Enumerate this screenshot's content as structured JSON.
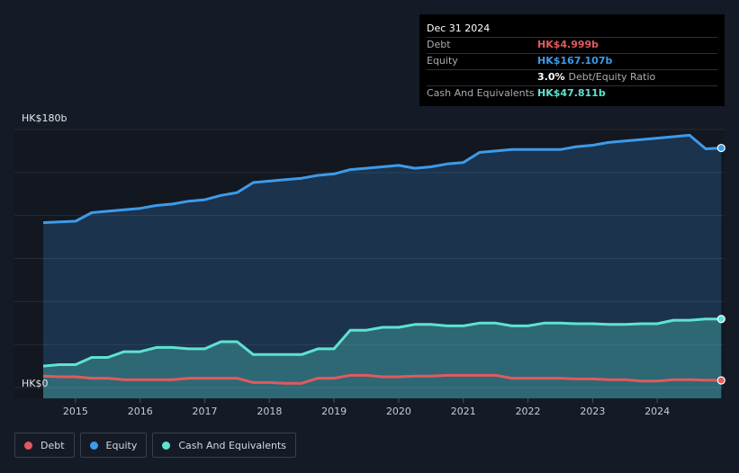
{
  "colors": {
    "debt": "#e05a5f",
    "equity": "#3d9be9",
    "cash": "#5ee3d0",
    "background": "#151b26",
    "plot_background": "#121720"
  },
  "tooltip": {
    "date": "Dec 31 2024",
    "debt_label": "Debt",
    "debt_value": "HK$4.999b",
    "equity_label": "Equity",
    "equity_value": "HK$167.107b",
    "ratio_percent": "3.0%",
    "ratio_label": "Debt/Equity Ratio",
    "cash_label": "Cash And Equivalents",
    "cash_value": "HK$47.811b"
  },
  "legend": [
    {
      "key": "debt",
      "label": "Debt",
      "color": "#e05a5f"
    },
    {
      "key": "equity",
      "label": "Equity",
      "color": "#3d9be9"
    },
    {
      "key": "cash",
      "label": "Cash And Equivalents",
      "color": "#5ee3d0"
    }
  ],
  "chart_data": {
    "type": "line",
    "title": "",
    "xlabel": "",
    "ylabel": "",
    "y_tick_labels": [
      "HK$0",
      "HK$180b"
    ],
    "ylim": [
      0,
      180
    ],
    "xlim": [
      2014.5,
      2025.0
    ],
    "x_ticks": [
      2015,
      2016,
      2017,
      2018,
      2019,
      2020,
      2021,
      2022,
      2023,
      2024
    ],
    "x_tick_labels": [
      "2015",
      "2016",
      "2017",
      "2018",
      "2019",
      "2020",
      "2021",
      "2022",
      "2023",
      "2024"
    ],
    "grid": true,
    "legend_position": "bottom-left",
    "series": [
      {
        "name": "Equity",
        "key": "equity",
        "unit": "HK$b",
        "area": true,
        "x": [
          2014.5,
          2014.75,
          2015.0,
          2015.25,
          2015.5,
          2015.75,
          2016.0,
          2016.25,
          2016.5,
          2016.75,
          2017.0,
          2017.25,
          2017.5,
          2017.75,
          2018.0,
          2018.25,
          2018.5,
          2018.75,
          2019.0,
          2019.25,
          2019.5,
          2019.75,
          2020.0,
          2020.25,
          2020.5,
          2020.75,
          2021.0,
          2021.25,
          2021.5,
          2021.75,
          2022.0,
          2022.25,
          2022.5,
          2022.75,
          2023.0,
          2023.25,
          2023.5,
          2023.75,
          2024.0,
          2024.25,
          2024.5,
          2024.75,
          2024.99
        ],
        "y": [
          115,
          115.5,
          116,
          122,
          123,
          124,
          125,
          127,
          128,
          130,
          131,
          134,
          136,
          143,
          144,
          145,
          146,
          148,
          149,
          152,
          153,
          154,
          155,
          153,
          154,
          156,
          157,
          164,
          165,
          166,
          166,
          166,
          166,
          168,
          169,
          171,
          172,
          173,
          174,
          175,
          176,
          166.5,
          167.107
        ]
      },
      {
        "name": "Cash And Equivalents",
        "key": "cash",
        "unit": "HK$b",
        "area": true,
        "x": [
          2014.5,
          2014.75,
          2015.0,
          2015.25,
          2015.5,
          2015.75,
          2016.0,
          2016.25,
          2016.5,
          2016.75,
          2017.0,
          2017.25,
          2017.5,
          2017.75,
          2018.0,
          2018.25,
          2018.5,
          2018.75,
          2019.0,
          2019.25,
          2019.5,
          2019.75,
          2020.0,
          2020.25,
          2020.5,
          2020.75,
          2021.0,
          2021.25,
          2021.5,
          2021.75,
          2022.0,
          2022.25,
          2022.5,
          2022.75,
          2023.0,
          2023.25,
          2023.5,
          2023.75,
          2024.0,
          2024.25,
          2024.5,
          2024.75,
          2024.99
        ],
        "y": [
          15,
          16,
          16,
          21,
          21,
          25,
          25,
          28,
          28,
          27,
          27,
          32,
          32,
          23,
          23,
          23,
          23,
          27,
          27,
          40,
          40,
          42,
          42,
          44,
          44,
          43,
          43,
          45,
          45,
          43,
          43,
          45,
          45,
          44.5,
          44.5,
          44,
          44,
          44.5,
          44.5,
          47,
          47,
          47.8,
          47.811
        ]
      },
      {
        "name": "Debt",
        "key": "debt",
        "unit": "HK$b",
        "area": false,
        "x": [
          2014.5,
          2014.75,
          2015.0,
          2015.25,
          2015.5,
          2015.75,
          2016.0,
          2016.25,
          2016.5,
          2016.75,
          2017.0,
          2017.25,
          2017.5,
          2017.75,
          2018.0,
          2018.25,
          2018.5,
          2018.75,
          2019.0,
          2019.25,
          2019.5,
          2019.75,
          2020.0,
          2020.25,
          2020.5,
          2020.75,
          2021.0,
          2021.25,
          2021.5,
          2021.75,
          2022.0,
          2022.25,
          2022.5,
          2022.75,
          2023.0,
          2023.25,
          2023.5,
          2023.75,
          2024.0,
          2024.25,
          2024.5,
          2024.75,
          2024.99
        ],
        "y": [
          8,
          7.5,
          7.5,
          6.5,
          6.5,
          5.5,
          5.5,
          5.5,
          5.5,
          6.5,
          6.5,
          6.5,
          6.5,
          3.5,
          3.5,
          3,
          3,
          6.5,
          6.5,
          8.5,
          8.5,
          7.5,
          7.5,
          8,
          8,
          8.5,
          8.5,
          8.5,
          8.5,
          6.5,
          6.5,
          6.5,
          6.5,
          6,
          6,
          5.5,
          5.5,
          4.5,
          4.5,
          5.5,
          5.5,
          5.2,
          4.999
        ]
      }
    ]
  }
}
